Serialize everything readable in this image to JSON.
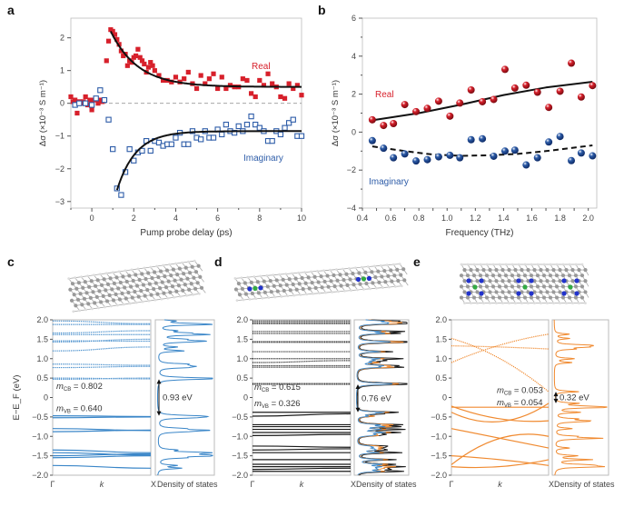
{
  "chart_data": [
    {
      "panel": "a",
      "type": "scatter",
      "xlabel": "Pump probe delay (ps)",
      "ylabel": "Δσ (×10⁻³ S m⁻¹)",
      "xlim": [
        -1,
        10
      ],
      "ylim": [
        -3.2,
        2.6
      ],
      "xticks": [
        0,
        2,
        4,
        6,
        8,
        10
      ],
      "yticks": [
        2,
        1,
        0,
        -1,
        -2,
        -3
      ],
      "zero_line": "dashed",
      "series": [
        {
          "name": "Real",
          "color": "#d7202b",
          "marker": "filled-square",
          "fit": {
            "type": "exponential",
            "y0": 0.5,
            "A": 1.7,
            "tau": 1.3,
            "t0": 0.9,
            "xrange": [
              0.9,
              10
            ]
          },
          "x": [
            -1,
            -0.9,
            -0.8,
            -0.7,
            -0.6,
            -0.5,
            -0.4,
            -0.3,
            -0.2,
            -0.1,
            0,
            0.1,
            0.2,
            0.3,
            0.4,
            0.5,
            0.6,
            0.7,
            0.8,
            0.9,
            1.0,
            1.1,
            1.2,
            1.3,
            1.4,
            1.5,
            1.6,
            1.7,
            1.8,
            1.9,
            2.0,
            2.1,
            2.2,
            2.3,
            2.4,
            2.5,
            2.6,
            2.7,
            2.8,
            2.9,
            3.0,
            3.2,
            3.4,
            3.6,
            3.8,
            4.0,
            4.2,
            4.4,
            4.6,
            4.8,
            5.0,
            5.2,
            5.4,
            5.6,
            5.8,
            6.0,
            6.2,
            6.4,
            6.6,
            6.8,
            7.0,
            7.2,
            7.4,
            7.6,
            7.8,
            8.0,
            8.2,
            8.4,
            8.6,
            8.8,
            9.0,
            9.2,
            9.4,
            9.6,
            9.8,
            10
          ],
          "y": [
            0.2,
            0.05,
            0.1,
            -0.3,
            0.05,
            0,
            0.05,
            0.2,
            -0.05,
            0.1,
            -0.2,
            0.1,
            0.15,
            0,
            0.1,
            0.05,
            0.1,
            1.3,
            1.9,
            2.25,
            2.2,
            2.1,
            1.95,
            1.8,
            1.6,
            1.45,
            1.5,
            1.15,
            1.3,
            1.25,
            1.4,
            1.45,
            1.65,
            1.4,
            1.3,
            1.2,
            0.95,
            1.1,
            1.25,
            1.15,
            1.0,
            0.85,
            0.7,
            0.7,
            0.65,
            0.8,
            0.65,
            0.75,
            0.95,
            0.6,
            0.45,
            0.85,
            0.6,
            0.75,
            0.9,
            0.45,
            0.8,
            0.45,
            0.55,
            0.5,
            0.5,
            0.75,
            0.7,
            0.3,
            0.2,
            0.7,
            0.55,
            0.9,
            0.6,
            0.5,
            0.2,
            0.15,
            0.6,
            0.45,
            0.55,
            0.25
          ]
        },
        {
          "name": "Imaginary",
          "color": "#2d5ca8",
          "marker": "open-square",
          "fit": {
            "type": "exponential",
            "y0": -0.85,
            "A": -1.8,
            "tau": 0.9,
            "t0": 1.2,
            "xrange": [
              1.2,
              10
            ]
          },
          "x": [
            -0.8,
            -0.6,
            -0.3,
            0,
            0.2,
            0.4,
            0.6,
            0.8,
            1.0,
            1.2,
            1.4,
            1.6,
            1.8,
            2.0,
            2.2,
            2.4,
            2.6,
            2.8,
            3.0,
            3.2,
            3.4,
            3.6,
            3.8,
            4.0,
            4.2,
            4.4,
            4.6,
            4.8,
            5.0,
            5.2,
            5.4,
            5.6,
            5.8,
            6.0,
            6.2,
            6.4,
            6.6,
            6.8,
            7.0,
            7.2,
            7.4,
            7.6,
            7.8,
            8.0,
            8.2,
            8.4,
            8.6,
            8.8,
            9.0,
            9.2,
            9.4,
            9.6,
            9.8,
            10
          ],
          "y": [
            -0.05,
            0,
            0,
            -0.05,
            0.15,
            0.4,
            0.1,
            -0.5,
            -1.4,
            -2.6,
            -2.8,
            -2.1,
            -1.4,
            -1.75,
            -1.5,
            -1.45,
            -1.15,
            -1.45,
            -1.15,
            -1.2,
            -1.3,
            -1.25,
            -1.25,
            -1.05,
            -0.9,
            -1.25,
            -1.25,
            -0.85,
            -1.05,
            -1.1,
            -0.85,
            -1.05,
            -1.05,
            -0.8,
            -0.95,
            -0.65,
            -0.85,
            -0.9,
            -0.7,
            -0.85,
            -0.65,
            -0.4,
            -0.65,
            -0.75,
            -0.85,
            -1.15,
            -1.15,
            -0.85,
            -0.95,
            -0.75,
            -0.6,
            -0.5,
            -1.0,
            -1.0
          ]
        }
      ]
    },
    {
      "panel": "b",
      "type": "scatter",
      "xlabel": "Frequency (THz)",
      "ylabel": "Δσ (×10⁻³ S m⁻¹)",
      "xlim": [
        0.4,
        2.06
      ],
      "ylim": [
        -4,
        6
      ],
      "xticks": [
        0.4,
        0.6,
        0.8,
        1.0,
        1.2,
        1.4,
        1.6,
        1.8,
        2.0
      ],
      "yticks": [
        6,
        4,
        2,
        0,
        -2,
        -4
      ],
      "series": [
        {
          "name": "Real",
          "color": "#d7202b",
          "marker": "sphere",
          "fit_style": "solid",
          "x": [
            0.47,
            0.55,
            0.62,
            0.7,
            0.78,
            0.86,
            0.94,
            1.02,
            1.09,
            1.17,
            1.25,
            1.33,
            1.41,
            1.48,
            1.56,
            1.64,
            1.72,
            1.8,
            1.88,
            1.95,
            2.03
          ],
          "y": [
            0.65,
            0.35,
            0.45,
            1.45,
            1.08,
            1.25,
            1.63,
            0.84,
            1.53,
            2.22,
            1.6,
            1.72,
            3.3,
            2.32,
            2.47,
            2.1,
            1.3,
            2.15,
            3.63,
            1.85,
            2.45
          ],
          "fit_x": [
            0.47,
            0.8,
            1.1,
            1.4,
            1.7,
            2.03
          ],
          "fit_y": [
            0.62,
            1.0,
            1.45,
            1.95,
            2.35,
            2.65
          ]
        },
        {
          "name": "Imaginary",
          "color": "#2d5ca8",
          "marker": "sphere",
          "fit_style": "dashed",
          "x": [
            0.47,
            0.55,
            0.62,
            0.7,
            0.78,
            0.86,
            0.94,
            1.02,
            1.09,
            1.17,
            1.25,
            1.33,
            1.41,
            1.48,
            1.56,
            1.64,
            1.72,
            1.8,
            1.88,
            1.95,
            2.03
          ],
          "y": [
            -0.45,
            -0.85,
            -1.35,
            -1.15,
            -1.52,
            -1.45,
            -1.3,
            -1.22,
            -1.35,
            -0.4,
            -0.35,
            -1.27,
            -1.0,
            -0.95,
            -1.73,
            -1.35,
            -0.52,
            -0.23,
            -1.5,
            -1.1,
            -1.25
          ],
          "fit_x": [
            0.47,
            0.7,
            0.9,
            1.1,
            1.3,
            1.5,
            1.7,
            1.9,
            2.03
          ],
          "fit_y": [
            -0.75,
            -1.0,
            -1.18,
            -1.25,
            -1.22,
            -1.15,
            -1.0,
            -0.82,
            -0.7
          ]
        }
      ]
    },
    {
      "panel": "c",
      "type": "line",
      "ylabel": "E−E_F (eV)",
      "ylim": [
        -2,
        2
      ],
      "yticks": [
        "2.0",
        "1.5",
        "1.0",
        "0.5",
        "0",
        "-0.5",
        "-1.0",
        "-1.5",
        "-2.0"
      ],
      "xticks": [
        "Γ",
        "k",
        "X"
      ],
      "dos_label": "Density of states",
      "color": "#3a86c8",
      "m_cb": "0.802",
      "m_vb": "0.640",
      "gap": "0.93 eV",
      "conduction": [
        [
          1.97,
          1.9
        ],
        [
          1.88,
          1.88
        ],
        [
          1.66,
          1.72
        ],
        [
          1.62,
          1.62
        ],
        [
          1.46,
          1.45
        ],
        [
          1.43,
          1.5
        ],
        [
          1.2,
          1.3
        ],
        [
          0.86,
          0.83
        ],
        [
          0.77,
          0.8
        ],
        [
          0.5,
          0.48
        ],
        [
          0.47,
          0.5
        ]
      ],
      "valence": [
        [
          -0.47,
          -0.49
        ],
        [
          -0.52,
          -0.5
        ],
        [
          -0.8,
          -0.85
        ],
        [
          -0.88,
          -0.84
        ],
        [
          -1.35,
          -1.42
        ],
        [
          -1.42,
          -1.48
        ],
        [
          -1.5,
          -1.45
        ],
        [
          -1.55,
          -1.5
        ],
        [
          -1.75,
          -1.82
        ]
      ]
    },
    {
      "panel": "d",
      "type": "line",
      "ylim": [
        -2,
        2
      ],
      "yticks": [
        "2.0",
        "1.5",
        "1.0",
        "0.5",
        "0",
        "-0.5",
        "-1.0",
        "-1.5",
        "-2.0"
      ],
      "xticks": [
        "Γ",
        "k",
        "X"
      ],
      "dos_label": "Density of states",
      "color": "#1a1a1a",
      "dos_colors": [
        "#1a1a1a",
        "#f08a30",
        "#3a86c8"
      ],
      "m_cb": "0.615",
      "m_vb": "0.326",
      "gap": "0.76 eV",
      "conduction": [
        [
          1.97,
          1.97
        ],
        [
          1.93,
          1.93
        ],
        [
          1.9,
          1.9
        ],
        [
          1.7,
          1.7
        ],
        [
          1.65,
          1.65
        ],
        [
          1.44,
          1.44
        ],
        [
          1.42,
          1.42
        ],
        [
          1.18,
          1.18
        ],
        [
          1.0,
          1.0
        ],
        [
          0.9,
          0.95
        ],
        [
          0.82,
          0.82
        ],
        [
          0.78,
          0.78
        ],
        [
          0.36,
          0.36
        ],
        [
          0.34,
          0.34
        ]
      ],
      "valence": [
        [
          -0.38,
          -0.38
        ],
        [
          -0.48,
          -0.42
        ],
        [
          -0.7,
          -0.7
        ],
        [
          -0.75,
          -0.75
        ],
        [
          -0.82,
          -0.82
        ],
        [
          -0.9,
          -0.9
        ],
        [
          -0.98,
          -0.95
        ],
        [
          -1.25,
          -1.28
        ],
        [
          -1.35,
          -1.32
        ],
        [
          -1.42,
          -1.42
        ],
        [
          -1.6,
          -1.6
        ],
        [
          -1.72,
          -1.72
        ],
        [
          -1.78,
          -1.78
        ],
        [
          -1.85,
          -1.82
        ],
        [
          -1.9,
          -1.9
        ]
      ]
    },
    {
      "panel": "e",
      "type": "line",
      "ylim": [
        -2,
        2
      ],
      "yticks": [
        "2.0",
        "1.5",
        "1.0",
        "0.5",
        "0",
        "-0.5",
        "-1.0",
        "-1.5",
        "-2.0"
      ],
      "xticks": [
        "Γ",
        "k",
        "X"
      ],
      "dos_label": "Density of states",
      "color": "#f08a30",
      "m_cb": "0.053",
      "m_vb": "0.054",
      "gap": "0.32 eV",
      "conduction": [
        [
          1.52,
          1.0,
          0.15
        ],
        [
          0.9,
          1.35,
          1.63
        ],
        [
          1.33,
          1.3,
          1.25
        ]
      ],
      "valence": [
        [
          -0.25,
          -0.25,
          -0.25
        ],
        [
          -0.38,
          -0.62,
          -0.15
        ],
        [
          -0.22,
          -0.55,
          -0.6
        ],
        [
          -0.8,
          -1.05,
          -1.3
        ],
        [
          -1.73,
          -1.05,
          -1.0
        ],
        [
          -1.5,
          -1.6,
          -1.75
        ],
        [
          -1.78,
          -1.78,
          -1.6
        ]
      ]
    }
  ],
  "panel_letters": [
    "a",
    "b",
    "c",
    "d",
    "e"
  ],
  "mass_labels": {
    "cb": "CB",
    "vb": "VB",
    "m": "m"
  }
}
